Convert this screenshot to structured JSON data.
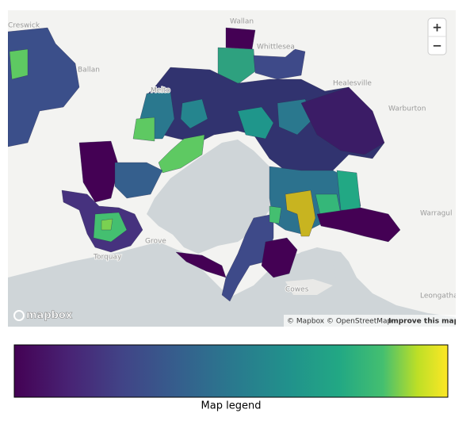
{
  "map": {
    "places": [
      "Creswick",
      "Wallan",
      "Whittlesea",
      "Ballan",
      "Melto",
      "Healesville",
      "Warburton",
      "Warragul",
      "Grove",
      "Torquay",
      "Cowes",
      "Leongatha"
    ],
    "zoom_in": "+",
    "zoom_out": "−",
    "logo": "mapbox",
    "attribution": "© Mapbox © OpenStreetMap",
    "improve": "Improve this map"
  },
  "legend": {
    "title": "Map legend"
  }
}
